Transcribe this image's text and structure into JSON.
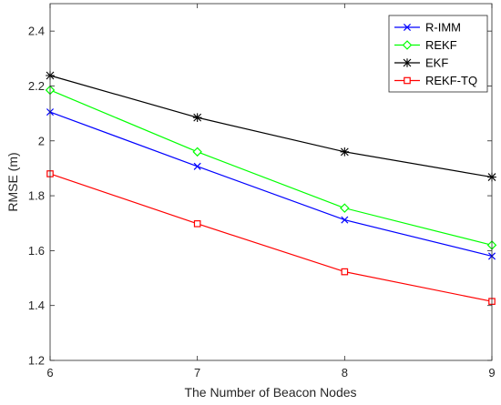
{
  "chart_data": {
    "type": "line",
    "title": "",
    "xlabel": "The Number of Beacon Nodes",
    "ylabel": "RMSE (m)",
    "x": [
      6,
      7,
      8,
      9
    ],
    "xlim": [
      6,
      9
    ],
    "ylim": [
      1.2,
      2.5
    ],
    "xticks": [
      "6",
      "7",
      "8",
      "9"
    ],
    "yticks": [
      "1.2",
      "1.4",
      "1.6",
      "1.8",
      "2",
      "2.2",
      "2.4"
    ],
    "grid": false,
    "legend_position": "top-right",
    "series": [
      {
        "name": "R-IMM",
        "values": [
          2.105,
          1.907,
          1.712,
          1.58
        ],
        "color": "#0000ff",
        "marker": "x"
      },
      {
        "name": "REKF",
        "values": [
          2.185,
          1.96,
          1.755,
          1.62
        ],
        "color": "#00ff00",
        "marker": "diamond"
      },
      {
        "name": "EKF",
        "values": [
          2.238,
          2.085,
          1.96,
          1.868
        ],
        "color": "#000000",
        "marker": "asterisk"
      },
      {
        "name": "REKF-TQ",
        "values": [
          1.88,
          1.698,
          1.523,
          1.415
        ],
        "color": "#ff0000",
        "marker": "square"
      }
    ]
  }
}
